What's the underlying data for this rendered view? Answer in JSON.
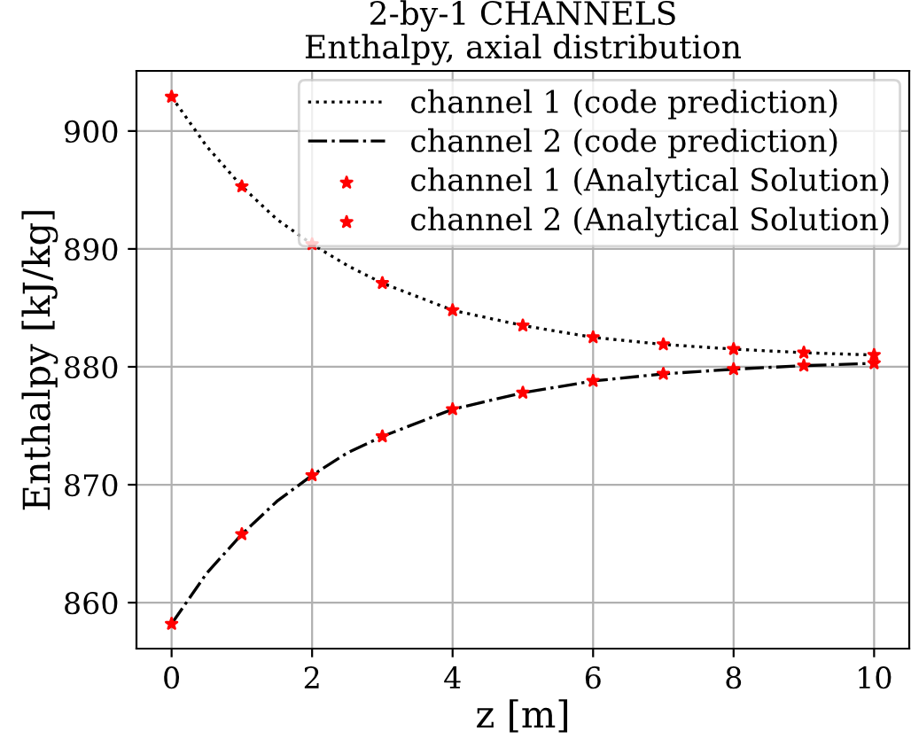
{
  "chart_data": {
    "type": "line",
    "title": "2-by-1 CHANNELS",
    "subtitle": "Enthalpy, axial distribution",
    "xlabel": "z [m]",
    "ylabel": "Enthalpy [kJ/kg]",
    "xlim": [
      -0.5,
      10.5
    ],
    "ylim": [
      856.1,
      905.1
    ],
    "xticks": [
      0,
      2,
      4,
      6,
      8,
      10
    ],
    "yticks": [
      860,
      870,
      880,
      890,
      900
    ],
    "grid": true,
    "legend": "top right",
    "series": [
      {
        "name": "channel 1 (code prediction)",
        "color": "#000000",
        "line_style": "dotted",
        "marker": "none",
        "x": [
          0,
          0.5,
          1,
          1.5,
          2,
          2.5,
          3,
          4,
          5,
          6,
          7,
          8,
          9,
          10
        ],
        "values": [
          902.9,
          898.7,
          895.3,
          892.5,
          890.4,
          888.6,
          887.1,
          884.8,
          883.5,
          882.5,
          881.9,
          881.5,
          881.2,
          881.0
        ]
      },
      {
        "name": "channel 2 (code prediction)",
        "color": "#000000",
        "line_style": "dashdot",
        "marker": "none",
        "x": [
          0,
          0.5,
          1,
          1.5,
          2,
          2.5,
          3,
          4,
          5,
          6,
          7,
          8,
          9,
          10
        ],
        "values": [
          858.2,
          862.5,
          865.8,
          868.6,
          870.8,
          872.7,
          874.1,
          876.4,
          877.8,
          878.8,
          879.4,
          879.8,
          880.1,
          880.3
        ]
      },
      {
        "name": "channel 1 (Analytical Solution)",
        "type": "scatter",
        "color": "#ff0000",
        "marker": "star",
        "x": [
          0,
          1,
          2,
          3,
          4,
          5,
          6,
          7,
          8,
          9,
          10
        ],
        "values": [
          902.9,
          895.3,
          890.4,
          887.1,
          884.8,
          883.5,
          882.5,
          881.9,
          881.5,
          881.2,
          881.0
        ]
      },
      {
        "name": "channel 2 (Analytical Solution)",
        "type": "scatter",
        "color": "#ff0000",
        "marker": "star",
        "x": [
          0,
          1,
          2,
          3,
          4,
          5,
          6,
          7,
          8,
          9,
          10
        ],
        "values": [
          858.2,
          865.8,
          870.8,
          874.1,
          876.4,
          877.8,
          878.8,
          879.4,
          879.8,
          880.1,
          880.3
        ]
      }
    ]
  }
}
